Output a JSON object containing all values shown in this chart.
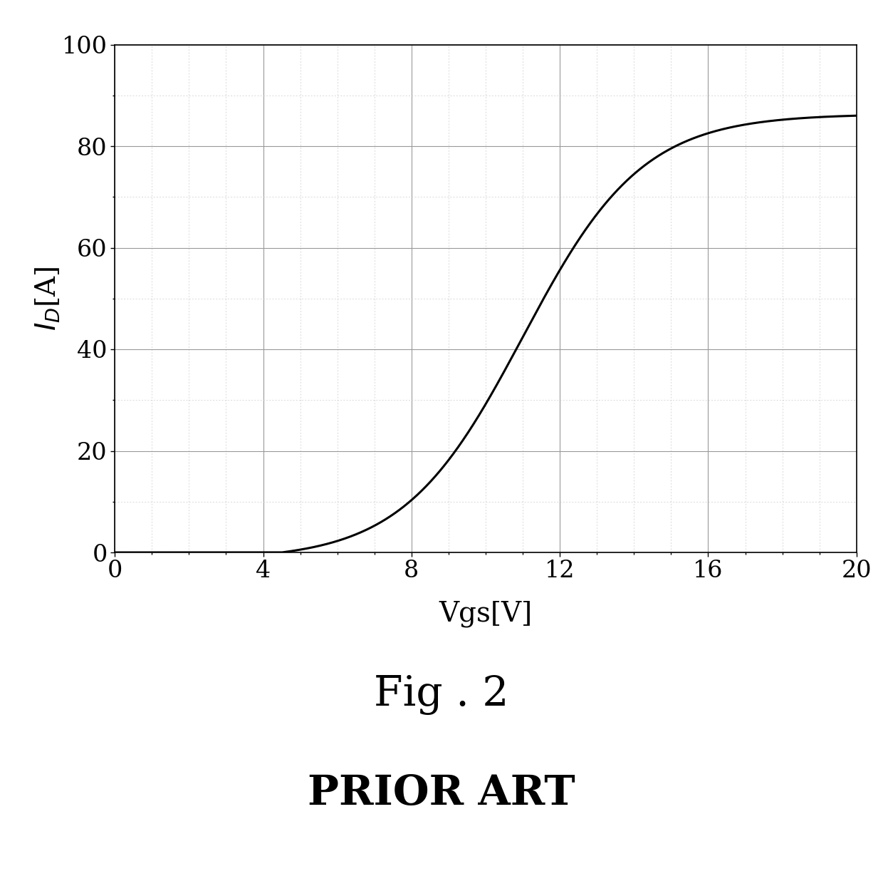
{
  "title_line1": "Fig . 2",
  "title_line2": "PRIOR ART",
  "xlabel": "Vgs[V]",
  "ylabel": "$I_D$ [A]",
  "xlim": [
    0,
    20
  ],
  "ylim": [
    0,
    100
  ],
  "xticks": [
    0,
    4,
    8,
    12,
    16,
    20
  ],
  "yticks": [
    0,
    20,
    40,
    60,
    80,
    100
  ],
  "line_color": "#000000",
  "background_color": "#ffffff",
  "grid_major_color": "#999999",
  "grid_minor_color": "#cccccc",
  "threshold_voltage": 4.5,
  "max_current": 86.0,
  "inflection_vgs": 11.0,
  "curve_steepness": 0.62
}
